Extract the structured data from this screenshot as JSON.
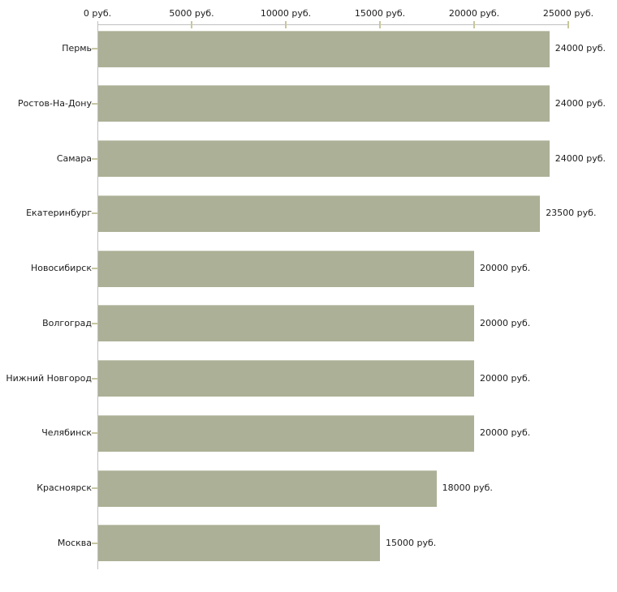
{
  "chart_data": {
    "type": "bar",
    "orientation": "horizontal",
    "title": "",
    "unit": "руб.",
    "categories": [
      "Пермь",
      "Ростов-На-Дону",
      "Самара",
      "Екатеринбург",
      "Новосибирск",
      "Волгоград",
      "Нижний Новгород",
      "Челябинск",
      "Красноярск",
      "Москва"
    ],
    "values": [
      24000,
      24000,
      24000,
      23500,
      20000,
      20000,
      20000,
      20000,
      18000,
      15000
    ],
    "value_labels": [
      "24000 руб.",
      "24000 руб.",
      "24000 руб.",
      "23500 руб.",
      "20000 руб.",
      "20000 руб.",
      "20000 руб.",
      "20000 руб.",
      "18000 руб.",
      "15000 руб."
    ],
    "x_axis": {
      "position": "top",
      "min": 0,
      "max": 25000,
      "ticks": [
        0,
        5000,
        10000,
        15000,
        20000,
        25000
      ],
      "tick_labels": [
        "0 руб.",
        "5000 руб.",
        "10000 руб.",
        "15000 руб.",
        "20000 руб.",
        "25000 руб."
      ]
    },
    "grid": false,
    "legend": "none",
    "colors": {
      "bar": "#acb096",
      "bar_top_edge": "#c6c9b6",
      "axis_line": "#c0c0c0",
      "x_tick": "#c9c79b",
      "y_tick": "#c6c5a0",
      "text": "#1c1c1c",
      "background": "#ffffff"
    }
  }
}
